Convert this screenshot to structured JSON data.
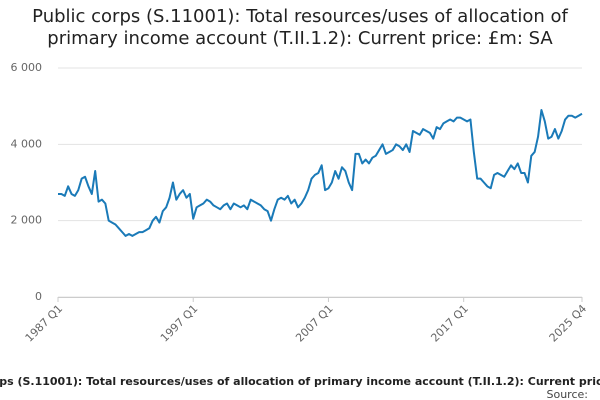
{
  "chart_data": {
    "type": "line",
    "title": "Public corps (S.11001): Total resources/uses of allocation of primary income account (T.II.1.2): Current price: £m: SA",
    "source": "Source:",
    "categories": [
      "1987 Q1",
      null,
      null,
      null,
      null,
      null,
      null,
      null,
      null,
      null,
      null,
      null,
      null,
      null,
      null,
      null,
      null,
      null,
      null,
      null,
      null,
      null,
      null,
      null,
      null,
      null,
      null,
      null,
      null,
      null,
      null,
      null,
      null,
      null,
      null,
      null,
      null,
      null,
      null,
      null,
      "1997 Q1",
      null,
      null,
      null,
      null,
      null,
      null,
      null,
      null,
      null,
      null,
      null,
      null,
      null,
      null,
      null,
      null,
      null,
      null,
      null,
      null,
      null,
      null,
      null,
      null,
      null,
      null,
      null,
      null,
      null,
      null,
      null,
      null,
      null,
      null,
      null,
      null,
      null,
      null,
      null,
      "2007 Q1",
      null,
      null,
      null,
      null,
      null,
      null,
      null,
      null,
      null,
      null,
      null,
      null,
      null,
      null,
      null,
      null,
      null,
      null,
      null,
      null,
      null,
      null,
      null,
      null,
      null,
      null,
      null,
      null,
      null,
      null,
      null,
      null,
      null,
      null,
      null,
      null,
      null,
      null,
      null,
      "2017 Q1",
      null,
      null,
      null,
      null,
      null,
      null,
      null,
      null,
      null,
      null,
      null,
      null,
      null,
      null,
      null,
      null,
      null,
      null,
      null,
      null,
      null,
      null,
      null,
      null,
      null,
      null,
      null,
      null,
      null,
      null,
      null,
      null,
      null,
      null,
      "2025 Q4"
    ],
    "series": [
      {
        "name": "Public corps (S.11001): Total resources/uses of allocation of primary income account (T.II.1.2): Current price: £m: SA",
        "color": "#1a7ab8",
        "values": [
          2700,
          2700,
          2650,
          2900,
          2700,
          2650,
          2800,
          3100,
          3150,
          2900,
          2700,
          3300,
          2500,
          2550,
          2450,
          2000,
          1950,
          1900,
          1800,
          1700,
          1600,
          1650,
          1600,
          1650,
          1700,
          1700,
          1750,
          1800,
          2000,
          2100,
          1950,
          2250,
          2350,
          2600,
          3000,
          2550,
          2700,
          2800,
          2600,
          2700,
          2050,
          2350,
          2400,
          2450,
          2550,
          2500,
          2400,
          2350,
          2300,
          2400,
          2450,
          2300,
          2450,
          2400,
          2350,
          2400,
          2300,
          2550,
          2500,
          2450,
          2400,
          2300,
          2250,
          2000,
          2300,
          2550,
          2600,
          2550,
          2650,
          2450,
          2550,
          2350,
          2450,
          2600,
          2800,
          3100,
          3200,
          3250,
          3450,
          2800,
          2850,
          3000,
          3300,
          3100,
          3400,
          3300,
          3000,
          2800,
          3750,
          3750,
          3500,
          3600,
          3500,
          3650,
          3700,
          3850,
          4000,
          3750,
          3800,
          3850,
          4000,
          3950,
          3850,
          4000,
          3800,
          4350,
          4300,
          4250,
          4400,
          4350,
          4300,
          4150,
          4450,
          4400,
          4550,
          4600,
          4650,
          4600,
          4700,
          4700,
          4650,
          4600,
          4650,
          3800,
          3100,
          3100,
          3000,
          2900,
          2850,
          3200,
          3250,
          3200,
          3150,
          3300,
          3450,
          3350,
          3500,
          3250,
          3250,
          3000,
          3700,
          3800,
          4200,
          4900,
          4600,
          4150,
          4200,
          4400,
          4150,
          4350,
          4650,
          4750,
          4750,
          4700,
          4750,
          4800
        ]
      }
    ],
    "ylim": [
      0,
      6000
    ],
    "yticks": [
      {
        "value": 0,
        "label": "0"
      },
      {
        "value": 2000,
        "label": "2 000"
      },
      {
        "value": 4000,
        "label": "4 000"
      },
      {
        "value": 6000,
        "label": "6 000"
      }
    ],
    "grid": true
  }
}
